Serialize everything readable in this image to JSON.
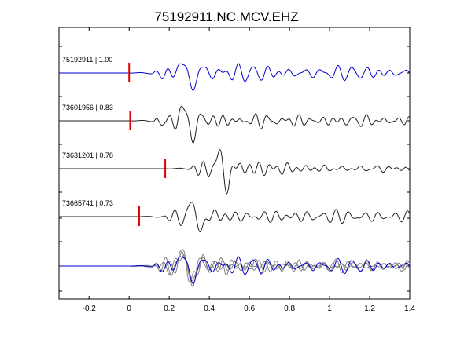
{
  "chart_data": {
    "type": "line",
    "title": "75192911.NC.MCV.EHZ",
    "xlabel": "",
    "ylabel": "",
    "xlim": [
      -0.35,
      1.4
    ],
    "x_ticks": [
      -0.2,
      0,
      0.2,
      0.4,
      0.6,
      0.8,
      1,
      1.2,
      1.4
    ],
    "x_tick_labels": [
      "-0.2",
      "0",
      "0.2",
      "0.4",
      "0.6",
      "0.8",
      "1",
      "1.2",
      "1.4"
    ],
    "grid": false,
    "pick_color": "#e00000",
    "colors": {
      "main": "#0000cc",
      "trace": "#222222",
      "overlay": "#808080"
    },
    "traces": [
      {
        "label": "75192911 | 1.00",
        "pick": 0.0,
        "color": "#0000cc"
      },
      {
        "label": "73601956 | 0.83",
        "pick": 0.005,
        "color": "#222222"
      },
      {
        "label": "73631201 | 0.78",
        "pick": 0.18,
        "color": "#222222"
      },
      {
        "label": "73665741 | 0.73",
        "pick": 0.05,
        "color": "#222222"
      }
    ],
    "overlay": {
      "label": "",
      "colors": [
        "#808080",
        "#0000cc"
      ]
    }
  }
}
